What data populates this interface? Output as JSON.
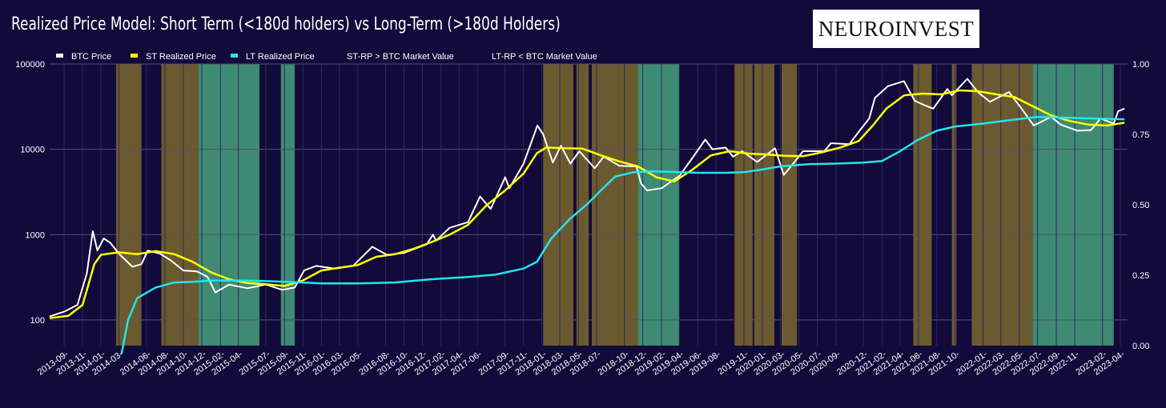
{
  "title": "Realized Price Model: Short Term (<180d holders) vs Long-Term (>180d Holders)",
  "logo": "NEUROINVEST",
  "chart_data": {
    "type": "line",
    "y_scale": "log",
    "ylim": [
      50,
      100000
    ],
    "y_ticks": [
      {
        "v": 100,
        "label": "100"
      },
      {
        "v": 1000,
        "label": "1000"
      },
      {
        "v": 10000,
        "label": "10000"
      },
      {
        "v": 100000,
        "label": "100000"
      }
    ],
    "y2lim": [
      0,
      1
    ],
    "y2_ticks": [
      "0.00",
      "0.25",
      "0.50",
      "0.75",
      "1.00"
    ],
    "xlim": [
      "2013-07-15",
      "2023-04-25"
    ],
    "x_tick_dates": [
      "2013-09-01",
      "2013-11-01",
      "2014-01-01",
      "2014-03-01",
      "2014-06-01",
      "2014-08-01",
      "2014-10-01",
      "2014-12-01",
      "2015-02-01",
      "2015-04-01",
      "2015-07-01",
      "2015-09-01",
      "2015-11-01",
      "2016-01-01",
      "2016-03-01",
      "2016-05-01",
      "2016-08-01",
      "2016-10-01",
      "2016-12-01",
      "2017-02-01",
      "2017-04-01",
      "2017-06-01",
      "2017-09-01",
      "2017-11-01",
      "2018-01-01",
      "2018-03-01",
      "2018-05-01",
      "2018-07-01",
      "2018-10-01",
      "2018-12-01",
      "2019-02-01",
      "2019-04-01",
      "2019-06-01",
      "2019-08-01",
      "2019-11-01",
      "2020-01-01",
      "2020-03-01",
      "2020-05-01",
      "2020-07-01",
      "2020-09-01",
      "2020-12-01",
      "2021-02-01",
      "2021-04-01",
      "2021-06-01",
      "2021-08-01",
      "2021-10-01",
      "2022-01-01",
      "2022-03-01",
      "2022-05-01",
      "2022-07-01",
      "2022-09-01",
      "2022-11-01",
      "2023-02-01",
      "2023-04-01"
    ],
    "x_tick_labels": [
      "2013-09-",
      "2013-11-",
      "2014-01-",
      "2014-03-",
      "2014-06-",
      "2014-08-",
      "2014-10-",
      "2014-12-",
      "2015-02-",
      "2015-04-",
      "2015-07-",
      "2015-09-",
      "2015-11-",
      "2016-01-",
      "2016-03-",
      "2016-05-",
      "2016-08-",
      "2016-10-",
      "2016-12-",
      "2017-02-",
      "2017-04-",
      "2017-06-",
      "2017-09-",
      "2017-11-",
      "2018-01-",
      "2018-03-",
      "2018-05-",
      "2018-07-",
      "2018-10-",
      "2018-12-",
      "2019-02-",
      "2019-04-",
      "2019-06-",
      "2019-08-",
      "2019-11-",
      "2020-01-",
      "2020-03-",
      "2020-05-",
      "2020-07-",
      "2020-09-",
      "2020-12-",
      "2021-02-",
      "2021-04-",
      "2021-06-",
      "2021-08-",
      "2021-10-",
      "2022-01-",
      "2022-03-",
      "2022-05-",
      "2022-07-",
      "2022-09-",
      "2022-11-",
      "2023-02-",
      "2023-04-"
    ],
    "legend": [
      {
        "label": "BTC Price",
        "color": "#ffffff"
      },
      {
        "label": "ST Realized Price",
        "color": "#ffff00"
      },
      {
        "label": "LT Realized Price",
        "color": "#22e5ee"
      },
      {
        "label": "ST-RP > BTC Market Value",
        "color": "#6b5a2f"
      },
      {
        "label": "LT-RP < BTC Market Value",
        "color": "#3f8a72"
      }
    ],
    "regions_st_rp_above_price": [
      [
        "2014-02-20",
        "2014-05-15"
      ],
      [
        "2014-07-20",
        "2014-11-20"
      ],
      [
        "2018-01-05",
        "2018-04-15"
      ],
      [
        "2018-04-25",
        "2018-06-05"
      ],
      [
        "2018-06-15",
        "2018-11-15"
      ],
      [
        "2019-10-01",
        "2019-11-30"
      ],
      [
        "2019-12-05",
        "2020-02-10"
      ],
      [
        "2020-03-05",
        "2020-04-25"
      ],
      [
        "2021-05-15",
        "2021-07-15"
      ],
      [
        "2021-09-20",
        "2021-10-05"
      ],
      [
        "2021-11-25",
        "2022-06-15"
      ]
    ],
    "regions_lt_rp_below_price": [
      [
        "2014-11-20",
        "2015-06-10"
      ],
      [
        "2015-08-20",
        "2015-10-05"
      ],
      [
        "2018-11-15",
        "2019-04-01"
      ],
      [
        "2022-06-15",
        "2022-12-20"
      ],
      [
        "2022-12-20",
        "2023-03-10"
      ]
    ],
    "series": [
      {
        "name": "BTC Price",
        "color": "#ffffff",
        "points": [
          [
            "2013-07-15",
            110
          ],
          [
            "2013-09-01",
            125
          ],
          [
            "2013-10-15",
            150
          ],
          [
            "2013-11-15",
            350
          ],
          [
            "2013-12-05",
            1100
          ],
          [
            "2013-12-20",
            650
          ],
          [
            "2014-01-10",
            900
          ],
          [
            "2014-02-01",
            800
          ],
          [
            "2014-03-01",
            600
          ],
          [
            "2014-04-15",
            420
          ],
          [
            "2014-05-15",
            450
          ],
          [
            "2014-06-05",
            650
          ],
          [
            "2014-07-15",
            600
          ],
          [
            "2014-08-20",
            500
          ],
          [
            "2014-10-01",
            380
          ],
          [
            "2014-11-15",
            370
          ],
          [
            "2014-12-20",
            320
          ],
          [
            "2015-01-15",
            210
          ],
          [
            "2015-03-01",
            260
          ],
          [
            "2015-05-01",
            235
          ],
          [
            "2015-07-01",
            260
          ],
          [
            "2015-08-25",
            225
          ],
          [
            "2015-10-05",
            240
          ],
          [
            "2015-11-05",
            380
          ],
          [
            "2015-12-15",
            430
          ],
          [
            "2016-02-15",
            400
          ],
          [
            "2016-04-15",
            430
          ],
          [
            "2016-06-18",
            720
          ],
          [
            "2016-08-05",
            580
          ],
          [
            "2016-10-01",
            610
          ],
          [
            "2016-12-15",
            770
          ],
          [
            "2017-01-05",
            1000
          ],
          [
            "2017-01-15",
            850
          ],
          [
            "2017-03-01",
            1200
          ],
          [
            "2017-05-01",
            1400
          ],
          [
            "2017-06-10",
            2800
          ],
          [
            "2017-07-15",
            2000
          ],
          [
            "2017-09-01",
            4700
          ],
          [
            "2017-09-15",
            3500
          ],
          [
            "2017-11-01",
            6800
          ],
          [
            "2017-12-17",
            19000
          ],
          [
            "2018-01-05",
            15000
          ],
          [
            "2018-02-06",
            7000
          ],
          [
            "2018-03-05",
            11000
          ],
          [
            "2018-04-05",
            6800
          ],
          [
            "2018-05-05",
            9500
          ],
          [
            "2018-06-25",
            6000
          ],
          [
            "2018-07-25",
            8200
          ],
          [
            "2018-09-15",
            6400
          ],
          [
            "2018-11-10",
            6300
          ],
          [
            "2018-11-25",
            4000
          ],
          [
            "2018-12-15",
            3300
          ],
          [
            "2019-02-01",
            3500
          ],
          [
            "2019-04-02",
            4900
          ],
          [
            "2019-05-15",
            8000
          ],
          [
            "2019-06-26",
            13000
          ],
          [
            "2019-07-20",
            10000
          ],
          [
            "2019-09-01",
            10500
          ],
          [
            "2019-09-26",
            8200
          ],
          [
            "2019-10-26",
            9500
          ],
          [
            "2019-12-15",
            7100
          ],
          [
            "2020-02-12",
            10300
          ],
          [
            "2020-03-12",
            5000
          ],
          [
            "2020-04-15",
            7000
          ],
          [
            "2020-05-15",
            9500
          ],
          [
            "2020-07-25",
            9500
          ],
          [
            "2020-08-15",
            11800
          ],
          [
            "2020-10-15",
            11500
          ],
          [
            "2020-11-15",
            16000
          ],
          [
            "2020-12-20",
            23000
          ],
          [
            "2021-01-08",
            40000
          ],
          [
            "2021-02-20",
            55000
          ],
          [
            "2021-04-14",
            63000
          ],
          [
            "2021-05-20",
            37000
          ],
          [
            "2021-06-20",
            33000
          ],
          [
            "2021-07-20",
            30000
          ],
          [
            "2021-09-05",
            51000
          ],
          [
            "2021-09-20",
            43000
          ],
          [
            "2021-11-10",
            67000
          ],
          [
            "2021-12-15",
            47000
          ],
          [
            "2022-01-24",
            36000
          ],
          [
            "2022-03-28",
            47000
          ],
          [
            "2022-05-12",
            29000
          ],
          [
            "2022-06-18",
            19000
          ],
          [
            "2022-08-15",
            24000
          ],
          [
            "2022-09-15",
            19500
          ],
          [
            "2022-11-10",
            16500
          ],
          [
            "2022-12-25",
            16800
          ],
          [
            "2023-01-25",
            23000
          ],
          [
            "2023-03-10",
            20000
          ],
          [
            "2023-03-25",
            28000
          ],
          [
            "2023-04-15",
            30000
          ]
        ]
      },
      {
        "name": "ST Realized Price",
        "color": "#ffff00",
        "points": [
          [
            "2013-07-15",
            105
          ],
          [
            "2013-09-15",
            112
          ],
          [
            "2013-11-01",
            150
          ],
          [
            "2013-12-10",
            450
          ],
          [
            "2014-01-01",
            580
          ],
          [
            "2014-03-01",
            620
          ],
          [
            "2014-05-01",
            590
          ],
          [
            "2014-07-01",
            640
          ],
          [
            "2014-09-01",
            590
          ],
          [
            "2014-11-01",
            480
          ],
          [
            "2015-01-01",
            360
          ],
          [
            "2015-03-01",
            300
          ],
          [
            "2015-05-01",
            270
          ],
          [
            "2015-07-01",
            262
          ],
          [
            "2015-09-01",
            250
          ],
          [
            "2015-11-01",
            290
          ],
          [
            "2016-01-01",
            380
          ],
          [
            "2016-03-01",
            410
          ],
          [
            "2016-05-01",
            440
          ],
          [
            "2016-07-01",
            550
          ],
          [
            "2016-09-01",
            590
          ],
          [
            "2016-11-01",
            680
          ],
          [
            "2017-01-01",
            820
          ],
          [
            "2017-03-01",
            1000
          ],
          [
            "2017-05-01",
            1300
          ],
          [
            "2017-07-01",
            2200
          ],
          [
            "2017-09-01",
            3300
          ],
          [
            "2017-11-01",
            5200
          ],
          [
            "2017-12-15",
            9000
          ],
          [
            "2018-01-15",
            10500
          ],
          [
            "2018-03-15",
            10300
          ],
          [
            "2018-05-15",
            10200
          ],
          [
            "2018-07-15",
            8500
          ],
          [
            "2018-09-15",
            7200
          ],
          [
            "2018-11-15",
            6300
          ],
          [
            "2019-01-15",
            4700
          ],
          [
            "2019-03-15",
            4200
          ],
          [
            "2019-05-15",
            5800
          ],
          [
            "2019-07-15",
            8500
          ],
          [
            "2019-09-15",
            9500
          ],
          [
            "2019-11-15",
            8900
          ],
          [
            "2020-01-15",
            8700
          ],
          [
            "2020-03-15",
            8400
          ],
          [
            "2020-05-15",
            8300
          ],
          [
            "2020-07-15",
            9200
          ],
          [
            "2020-09-15",
            10500
          ],
          [
            "2020-11-15",
            12500
          ],
          [
            "2021-01-01",
            19000
          ],
          [
            "2021-02-15",
            30000
          ],
          [
            "2021-04-15",
            43000
          ],
          [
            "2021-06-15",
            45000
          ],
          [
            "2021-08-15",
            44000
          ],
          [
            "2021-10-15",
            49000
          ],
          [
            "2021-12-15",
            48000
          ],
          [
            "2022-02-15",
            44000
          ],
          [
            "2022-04-15",
            41000
          ],
          [
            "2022-06-15",
            32000
          ],
          [
            "2022-08-15",
            25000
          ],
          [
            "2022-10-15",
            21500
          ],
          [
            "2022-12-15",
            19500
          ],
          [
            "2023-02-15",
            19000
          ],
          [
            "2023-04-15",
            20500
          ]
        ]
      },
      {
        "name": "LT Realized Price",
        "color": "#22e5ee",
        "points": [
          [
            "2014-03-10",
            40
          ],
          [
            "2014-04-01",
            100
          ],
          [
            "2014-05-01",
            180
          ],
          [
            "2014-07-01",
            240
          ],
          [
            "2014-09-01",
            275
          ],
          [
            "2014-11-01",
            280
          ],
          [
            "2015-01-01",
            290
          ],
          [
            "2015-04-01",
            290
          ],
          [
            "2015-07-01",
            285
          ],
          [
            "2015-10-01",
            278
          ],
          [
            "2016-01-01",
            268
          ],
          [
            "2016-05-01",
            268
          ],
          [
            "2016-09-01",
            275
          ],
          [
            "2017-01-01",
            300
          ],
          [
            "2017-05-01",
            318
          ],
          [
            "2017-08-01",
            340
          ],
          [
            "2017-11-01",
            400
          ],
          [
            "2017-12-15",
            480
          ],
          [
            "2018-02-01",
            900
          ],
          [
            "2018-04-01",
            1500
          ],
          [
            "2018-06-01",
            2300
          ],
          [
            "2018-07-15",
            3300
          ],
          [
            "2018-09-01",
            4800
          ],
          [
            "2018-11-01",
            5400
          ],
          [
            "2019-01-01",
            5500
          ],
          [
            "2019-03-01",
            5450
          ],
          [
            "2019-06-01",
            5300
          ],
          [
            "2019-09-01",
            5300
          ],
          [
            "2019-11-01",
            5400
          ],
          [
            "2020-01-01",
            5800
          ],
          [
            "2020-03-01",
            6300
          ],
          [
            "2020-06-01",
            6700
          ],
          [
            "2020-09-01",
            6800
          ],
          [
            "2020-12-01",
            7000
          ],
          [
            "2021-02-01",
            7300
          ],
          [
            "2021-04-01",
            9500
          ],
          [
            "2021-06-01",
            13000
          ],
          [
            "2021-08-01",
            16500
          ],
          [
            "2021-10-01",
            18500
          ],
          [
            "2022-01-01",
            20000
          ],
          [
            "2022-04-01",
            22000
          ],
          [
            "2022-07-01",
            24000
          ],
          [
            "2022-10-01",
            23500
          ],
          [
            "2023-01-01",
            23000
          ],
          [
            "2023-04-15",
            22500
          ]
        ]
      }
    ]
  }
}
